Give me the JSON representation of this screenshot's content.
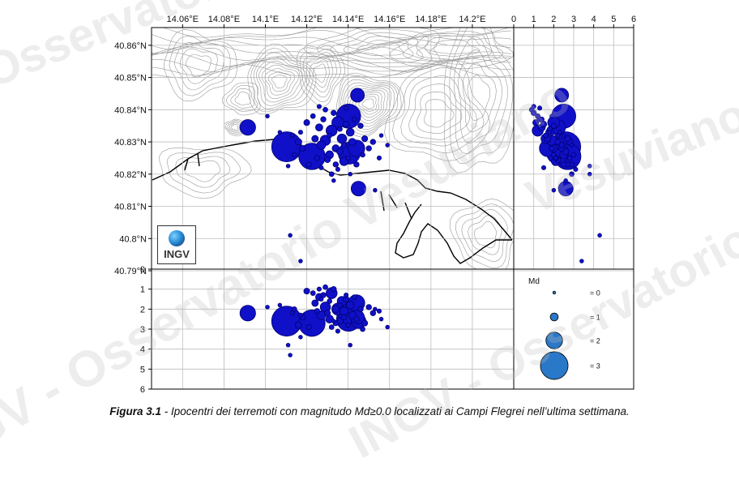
{
  "watermarks": [
    "Osservatorio",
    "Vesuviano",
    "INGV - Osservatorio Vesuviano",
    "INGV - Osservatorio Vesuviano"
  ],
  "logo": {
    "text": "INGV",
    "icon": "globe-icon"
  },
  "caption": {
    "figure_label": "Figura 3.1",
    "text": " - Ipocentri dei terremoti con magnitudo Md≥0.0 localizzati ai Campi Flegrei nell’ultima settimana."
  },
  "legend": {
    "title": "Md",
    "entries": [
      {
        "label": "= 0",
        "md": 0
      },
      {
        "label": "= 1",
        "md": 1
      },
      {
        "label": "= 2",
        "md": 2
      },
      {
        "label": "= 3",
        "md": 3
      }
    ],
    "color": "#2a78c8"
  },
  "colors": {
    "event_fill": "#1010c8",
    "event_edge": "#000070",
    "coast": "#000000",
    "contour": "#9a9a9a",
    "grid": "#bdbdbd"
  },
  "chart_data": {
    "type": "scatter",
    "title": "",
    "map": {
      "xlim": [
        14.045,
        14.22
      ],
      "ylim": [
        40.7905,
        40.8655
      ],
      "x_ticks": [
        14.06,
        14.08,
        14.1,
        14.12,
        14.14,
        14.16,
        14.18,
        14.2
      ],
      "x_tick_labels": [
        "14.06°E",
        "14.08°E",
        "14.1°E",
        "14.12°E",
        "14.14°E",
        "14.16°E",
        "14.18°E",
        "14.2°E"
      ],
      "y_ticks": [
        40.79,
        40.8,
        40.81,
        40.82,
        40.83,
        40.84,
        40.85,
        40.86
      ],
      "y_tick_labels": [
        "40.79°N",
        "40.8°N",
        "40.81°N",
        "40.82°N",
        "40.83°N",
        "40.84°N",
        "40.85°N",
        "40.86°N"
      ],
      "grid": true
    },
    "depth_lat": {
      "xlim": [
        0,
        6
      ],
      "x_ticks": [
        0,
        1,
        2,
        3,
        4,
        5,
        6
      ],
      "x_tick_labels": [
        "0",
        "1",
        "2",
        "3",
        "4",
        "5",
        "6"
      ],
      "grid": true
    },
    "depth_lon": {
      "ylim": [
        0,
        6
      ],
      "y_ticks": [
        0,
        1,
        2,
        3,
        4,
        5,
        6
      ],
      "y_tick_labels": [
        "0",
        "1",
        "2",
        "3",
        "4",
        "5",
        "6"
      ],
      "inverted": true,
      "grid": true
    },
    "events": [
      {
        "lon": 14.1225,
        "lat": 40.8255,
        "depth": 2.7,
        "md": 2.9
      },
      {
        "lon": 14.1103,
        "lat": 40.8285,
        "depth": 2.6,
        "md": 3.2
      },
      {
        "lon": 14.1402,
        "lat": 40.838,
        "depth": 2.5,
        "md": 2.7
      },
      {
        "lon": 14.1405,
        "lat": 40.8265,
        "depth": 2.2,
        "md": 2.5
      },
      {
        "lon": 14.144,
        "lat": 40.828,
        "depth": 1.7,
        "md": 2.0
      },
      {
        "lon": 14.1445,
        "lat": 40.8445,
        "depth": 2.4,
        "md": 1.7
      },
      {
        "lon": 14.0915,
        "lat": 40.8345,
        "depth": 2.2,
        "md": 1.9
      },
      {
        "lon": 14.145,
        "lat": 40.8155,
        "depth": 2.6,
        "md": 1.8
      },
      {
        "lon": 14.132,
        "lat": 40.8335,
        "depth": 1.2,
        "md": 1.4
      },
      {
        "lon": 14.129,
        "lat": 40.8305,
        "depth": 1.9,
        "md": 1.3
      },
      {
        "lon": 14.135,
        "lat": 40.836,
        "depth": 2.0,
        "md": 1.5
      },
      {
        "lon": 14.127,
        "lat": 40.829,
        "depth": 2.3,
        "md": 1.1
      },
      {
        "lon": 14.137,
        "lat": 40.831,
        "depth": 1.6,
        "md": 1.2
      },
      {
        "lon": 14.131,
        "lat": 40.826,
        "depth": 2.5,
        "md": 1.0
      },
      {
        "lon": 14.138,
        "lat": 40.824,
        "depth": 2.1,
        "md": 1.1
      },
      {
        "lon": 14.126,
        "lat": 40.8345,
        "depth": 1.4,
        "md": 0.9
      },
      {
        "lon": 14.134,
        "lat": 40.828,
        "depth": 2.0,
        "md": 0.9
      },
      {
        "lon": 14.141,
        "lat": 40.833,
        "depth": 1.8,
        "md": 1.0
      },
      {
        "lon": 14.116,
        "lat": 40.83,
        "depth": 2.8,
        "md": 0.8
      },
      {
        "lon": 14.12,
        "lat": 40.836,
        "depth": 1.1,
        "md": 0.7
      },
      {
        "lon": 14.124,
        "lat": 40.831,
        "depth": 1.7,
        "md": 0.8
      },
      {
        "lon": 14.128,
        "lat": 40.837,
        "depth": 1.3,
        "md": 0.6
      },
      {
        "lon": 14.13,
        "lat": 40.8245,
        "depth": 2.2,
        "md": 0.7
      },
      {
        "lon": 14.133,
        "lat": 40.839,
        "depth": 1.0,
        "md": 0.6
      },
      {
        "lon": 14.136,
        "lat": 40.827,
        "depth": 2.6,
        "md": 0.8
      },
      {
        "lon": 14.139,
        "lat": 40.8355,
        "depth": 1.5,
        "md": 0.7
      },
      {
        "lon": 14.142,
        "lat": 40.83,
        "depth": 2.3,
        "md": 0.9
      },
      {
        "lon": 14.146,
        "lat": 40.835,
        "depth": 2.0,
        "md": 0.6
      },
      {
        "lon": 14.148,
        "lat": 40.831,
        "depth": 2.7,
        "md": 0.7
      },
      {
        "lon": 14.15,
        "lat": 40.828,
        "depth": 1.9,
        "md": 0.6
      },
      {
        "lon": 14.152,
        "lat": 40.83,
        "depth": 2.2,
        "md": 0.6
      },
      {
        "lon": 14.118,
        "lat": 40.828,
        "depth": 2.4,
        "md": 0.7
      },
      {
        "lon": 14.121,
        "lat": 40.823,
        "depth": 2.9,
        "md": 0.6
      },
      {
        "lon": 14.123,
        "lat": 40.838,
        "depth": 1.2,
        "md": 0.5
      },
      {
        "lon": 14.125,
        "lat": 40.825,
        "depth": 2.1,
        "md": 0.6
      },
      {
        "lon": 14.129,
        "lat": 40.84,
        "depth": 0.9,
        "md": 0.5
      },
      {
        "lon": 14.131,
        "lat": 40.832,
        "depth": 1.6,
        "md": 0.5
      },
      {
        "lon": 14.134,
        "lat": 40.823,
        "depth": 2.7,
        "md": 0.6
      },
      {
        "lon": 14.136,
        "lat": 40.834,
        "depth": 1.8,
        "md": 0.5
      },
      {
        "lon": 14.138,
        "lat": 40.829,
        "depth": 2.4,
        "md": 0.6
      },
      {
        "lon": 14.14,
        "lat": 40.825,
        "depth": 2.8,
        "md": 0.5
      },
      {
        "lon": 14.143,
        "lat": 40.837,
        "depth": 1.4,
        "md": 0.5
      },
      {
        "lon": 14.144,
        "lat": 40.823,
        "depth": 2.5,
        "md": 0.6
      },
      {
        "lon": 14.147,
        "lat": 40.826,
        "depth": 3.0,
        "md": 0.5
      },
      {
        "lon": 14.114,
        "lat": 40.826,
        "depth": 2.0,
        "md": 0.5
      },
      {
        "lon": 14.117,
        "lat": 40.833,
        "depth": 2.3,
        "md": 0.4
      },
      {
        "lon": 14.127,
        "lat": 40.822,
        "depth": 1.5,
        "md": 0.4
      },
      {
        "lon": 14.132,
        "lat": 40.82,
        "depth": 2.9,
        "md": 0.5
      },
      {
        "lon": 14.135,
        "lat": 40.8215,
        "depth": 3.1,
        "md": 0.4
      },
      {
        "lon": 14.126,
        "lat": 40.841,
        "depth": 1.0,
        "md": 0.4
      },
      {
        "lon": 14.139,
        "lat": 40.8405,
        "depth": 1.3,
        "md": 0.4
      },
      {
        "lon": 14.155,
        "lat": 40.825,
        "depth": 2.1,
        "md": 0.4
      },
      {
        "lon": 14.156,
        "lat": 40.832,
        "depth": 2.5,
        "md": 0.3
      },
      {
        "lon": 14.107,
        "lat": 40.833,
        "depth": 1.8,
        "md": 0.3
      },
      {
        "lon": 14.111,
        "lat": 40.8225,
        "depth": 3.8,
        "md": 0.3
      },
      {
        "lon": 14.159,
        "lat": 40.829,
        "depth": 2.9,
        "md": 0.3
      },
      {
        "lon": 14.113,
        "lat": 40.832,
        "depth": 2.2,
        "md": 0.4
      },
      {
        "lon": 14.141,
        "lat": 40.82,
        "depth": 3.8,
        "md": 0.3
      },
      {
        "lon": 14.133,
        "lat": 40.818,
        "depth": 2.6,
        "md": 0.3
      },
      {
        "lon": 14.112,
        "lat": 40.801,
        "depth": 4.3,
        "md": 0.3
      },
      {
        "lon": 14.117,
        "lat": 40.793,
        "depth": 3.4,
        "md": 0.3
      },
      {
        "lon": 14.153,
        "lat": 40.815,
        "depth": 2.0,
        "md": 0.3
      },
      {
        "lon": 14.101,
        "lat": 40.838,
        "depth": 1.9,
        "md": 0.3
      }
    ]
  }
}
